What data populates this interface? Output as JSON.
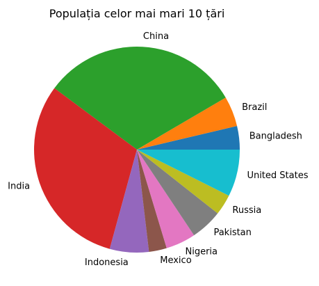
{
  "chart_data": {
    "type": "pie",
    "title": "Populația celor mai mari 10 țări",
    "start_angle_deg": 0,
    "direction": "counterclockwise",
    "slices": [
      {
        "label": "Bangladesh",
        "value": 166,
        "color": "#1f77b4"
      },
      {
        "label": "Brazil",
        "value": 213,
        "color": "#ff7f0e"
      },
      {
        "label": "China",
        "value": 1412,
        "color": "#2ca02c"
      },
      {
        "label": "India",
        "value": 1390,
        "color": "#d62728"
      },
      {
        "label": "Indonesia",
        "value": 276,
        "color": "#9467bd"
      },
      {
        "label": "Mexico",
        "value": 126,
        "color": "#8c564b"
      },
      {
        "label": "Nigeria",
        "value": 211,
        "color": "#e377c2"
      },
      {
        "label": "Pakistan",
        "value": 225,
        "color": "#7f7f7f"
      },
      {
        "label": "Russia",
        "value": 146,
        "color": "#bcbd22"
      },
      {
        "label": "United States",
        "value": 332,
        "color": "#17becf"
      }
    ]
  }
}
